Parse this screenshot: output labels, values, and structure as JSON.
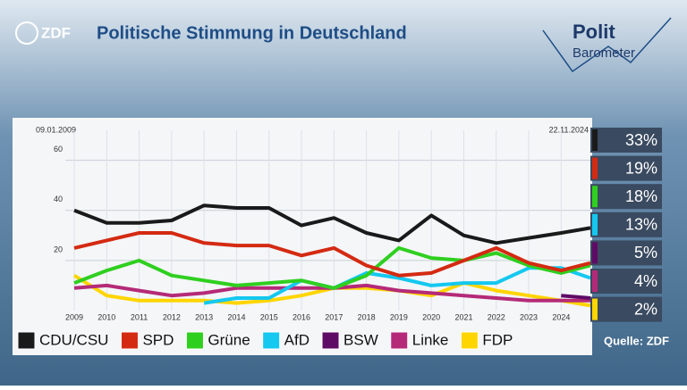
{
  "header": {
    "broadcaster": "ZDF",
    "program_top": "Polit",
    "program_bottom": "Barometer"
  },
  "source": "Quelle: ZDF",
  "chart_data": {
    "type": "line",
    "title": "Politische Stimmung in Deutschland",
    "date_range": [
      "09.01.2009",
      "22.11.2024"
    ],
    "x": [
      2009,
      2010,
      2011,
      2012,
      2013,
      2014,
      2015,
      2016,
      2017,
      2018,
      2019,
      2020,
      2021,
      2022,
      2023,
      2024,
      2024.9
    ],
    "xlim": [
      2009,
      2024.9
    ],
    "xticks": [
      2009,
      2010,
      2011,
      2012,
      2013,
      2014,
      2015,
      2016,
      2017,
      2018,
      2019,
      2020,
      2021,
      2022,
      2023,
      2024
    ],
    "ylim": [
      0,
      72
    ],
    "yticks": [
      20,
      40,
      60
    ],
    "grid": true,
    "series": [
      {
        "name": "CDU/CSU",
        "color": "#1a1a1a",
        "end_label": "33%",
        "values": [
          40,
          35,
          35,
          36,
          42,
          41,
          41,
          34,
          37,
          31,
          28,
          38,
          30,
          27,
          29,
          31,
          33
        ]
      },
      {
        "name": "SPD",
        "color": "#d42a12",
        "end_label": "19%",
        "values": [
          25,
          28,
          31,
          31,
          27,
          26,
          26,
          22,
          25,
          18,
          14,
          15,
          20,
          25,
          19,
          16,
          19
        ]
      },
      {
        "name": "Grüne",
        "color": "#2fcf1f",
        "end_label": "18%",
        "values": [
          11,
          16,
          20,
          14,
          12,
          10,
          11,
          12,
          9,
          14,
          25,
          21,
          20,
          23,
          18,
          15,
          18
        ]
      },
      {
        "name": "AfD",
        "color": "#14c8f0",
        "end_label": "13%",
        "values": [
          null,
          null,
          null,
          null,
          3,
          5,
          5,
          12,
          9,
          15,
          13,
          10,
          11,
          11,
          17,
          17,
          13
        ]
      },
      {
        "name": "BSW",
        "color": "#5e0b66",
        "end_label": "5%",
        "values": [
          null,
          null,
          null,
          null,
          null,
          null,
          null,
          null,
          null,
          null,
          null,
          null,
          null,
          null,
          null,
          6,
          5
        ]
      },
      {
        "name": "Linke",
        "color": "#b52a78",
        "end_label": "4%",
        "values": [
          9,
          10,
          8,
          6,
          7,
          9,
          9,
          9,
          9,
          10,
          8,
          7,
          6,
          5,
          4,
          4,
          4
        ]
      },
      {
        "name": "FDP",
        "color": "#ffd500",
        "end_label": "2%",
        "values": [
          14,
          6,
          4,
          4,
          4,
          3,
          4,
          6,
          9,
          9,
          8,
          6,
          11,
          8,
          6,
          4,
          2
        ]
      }
    ]
  }
}
